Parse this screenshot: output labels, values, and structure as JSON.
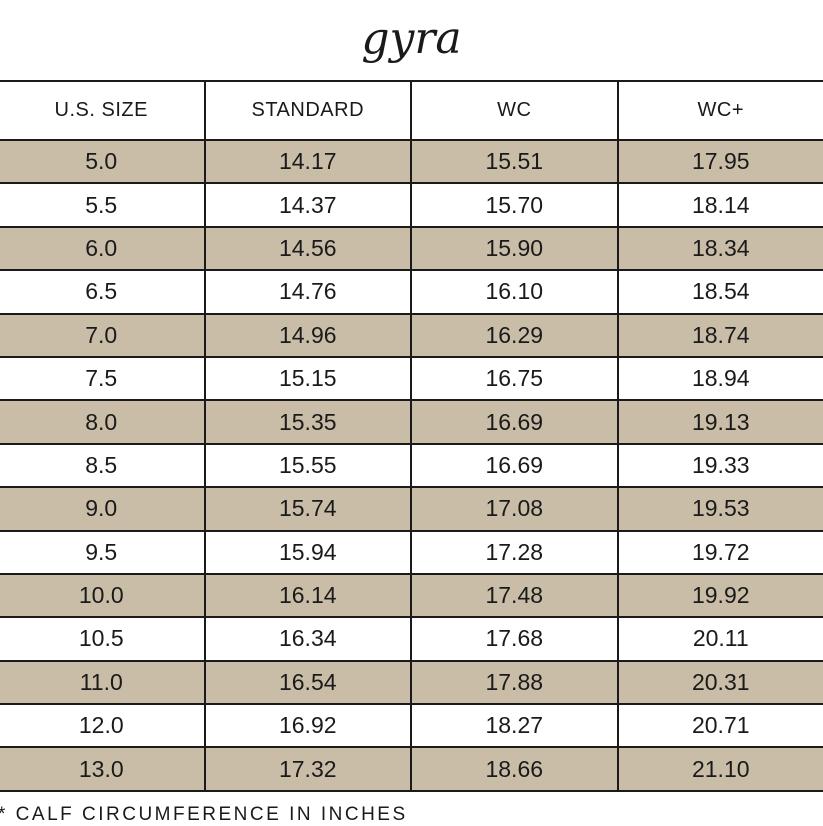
{
  "title": "gyra",
  "table": {
    "headers": [
      "U.S. SIZE",
      "STANDARD",
      "WC",
      "WC+"
    ],
    "rows": [
      [
        "5.0",
        "14.17",
        "15.51",
        "17.95"
      ],
      [
        "5.5",
        "14.37",
        "15.70",
        "18.14"
      ],
      [
        "6.0",
        "14.56",
        "15.90",
        "18.34"
      ],
      [
        "6.5",
        "14.76",
        "16.10",
        "18.54"
      ],
      [
        "7.0",
        "14.96",
        "16.29",
        "18.74"
      ],
      [
        "7.5",
        "15.15",
        "16.75",
        "18.94"
      ],
      [
        "8.0",
        "15.35",
        "16.69",
        "19.13"
      ],
      [
        "8.5",
        "15.55",
        "16.69",
        "19.33"
      ],
      [
        "9.0",
        "15.74",
        "17.08",
        "19.53"
      ],
      [
        "9.5",
        "15.94",
        "17.28",
        "19.72"
      ],
      [
        "10.0",
        "16.14",
        "17.48",
        "19.92"
      ],
      [
        "10.5",
        "16.34",
        "17.68",
        "20.11"
      ],
      [
        "11.0",
        "16.54",
        "17.88",
        "20.31"
      ],
      [
        "12.0",
        "16.92",
        "18.27",
        "20.71"
      ],
      [
        "13.0",
        "17.32",
        "18.66",
        "21.10"
      ]
    ]
  },
  "footnote": "* CALF CIRCUMFERENCE IN INCHES",
  "colors": {
    "shaded_row": "#c9bda8",
    "border": "#1a1a1a",
    "text": "#1a1a1a"
  }
}
